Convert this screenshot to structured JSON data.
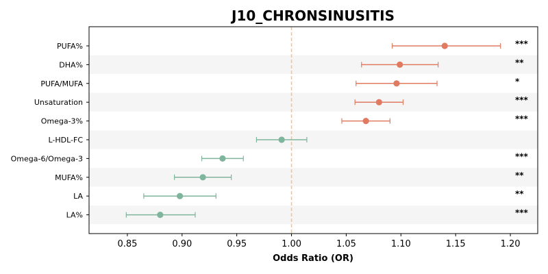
{
  "chart_data": {
    "type": "scatter",
    "title": "J10_CHRONSINUSITIS",
    "xlabel": "Odds Ratio (OR)",
    "ylabel": "",
    "xlim": [
      0.815,
      1.225
    ],
    "xticks": [
      "0.85",
      "0.90",
      "0.95",
      "1.00",
      "1.05",
      "1.10",
      "1.15",
      "1.20"
    ],
    "reference_line": 1.0,
    "colors": {
      "positive": "#e07b62",
      "negative": "#7fb59c",
      "reference": "#f5c57a",
      "band": "#f5f5f5"
    },
    "rows": [
      {
        "label": "PUFA%",
        "or": 1.14,
        "lo": 1.092,
        "hi": 1.191,
        "sig": "***"
      },
      {
        "label": "DHA%",
        "or": 1.099,
        "lo": 1.064,
        "hi": 1.134,
        "sig": "**"
      },
      {
        "label": "PUFA/MUFA",
        "or": 1.096,
        "lo": 1.059,
        "hi": 1.133,
        "sig": "*"
      },
      {
        "label": "Unsaturation",
        "or": 1.08,
        "lo": 1.058,
        "hi": 1.102,
        "sig": "***"
      },
      {
        "label": "Omega-3%",
        "or": 1.068,
        "lo": 1.046,
        "hi": 1.09,
        "sig": "***"
      },
      {
        "label": "L-HDL-FC",
        "or": 0.991,
        "lo": 0.968,
        "hi": 1.014,
        "sig": ""
      },
      {
        "label": "Omega-6/Omega-3",
        "or": 0.937,
        "lo": 0.918,
        "hi": 0.956,
        "sig": "***"
      },
      {
        "label": "MUFA%",
        "or": 0.919,
        "lo": 0.893,
        "hi": 0.945,
        "sig": "**"
      },
      {
        "label": "LA",
        "or": 0.898,
        "lo": 0.865,
        "hi": 0.931,
        "sig": "**"
      },
      {
        "label": "LA%",
        "or": 0.88,
        "lo": 0.849,
        "hi": 0.912,
        "sig": "***"
      }
    ]
  }
}
